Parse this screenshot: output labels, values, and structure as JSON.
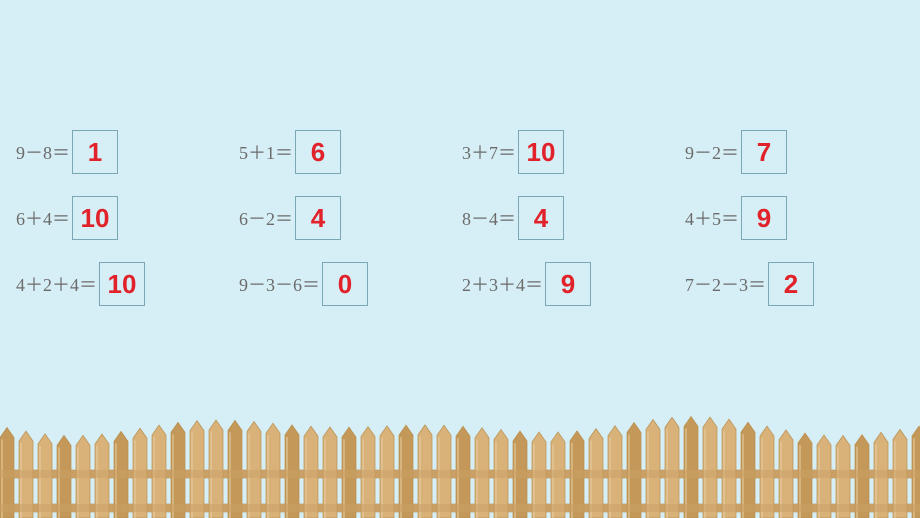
{
  "background_color": "#d6eef5",
  "answer_color": "#e1222a",
  "expr_color": "#6b6b6b",
  "box_border_color": "#7aa7b3",
  "expr_fontsize": 18,
  "answer_fontsize": 26,
  "fence": {
    "picket_color_light": "#d9b27a",
    "picket_color_dark": "#c39858",
    "picket_edge": "#b88e4e",
    "rail_color": "#caa066"
  },
  "columns": [
    [
      {
        "expr": "9－8＝",
        "ans": "1"
      },
      {
        "expr": "6＋4＝",
        "ans": "10"
      },
      {
        "expr": "4＋2＋4＝",
        "ans": "10"
      }
    ],
    [
      {
        "expr": "5＋1＝",
        "ans": "6"
      },
      {
        "expr": "6－2＝",
        "ans": "4"
      },
      {
        "expr": "9－3－6＝",
        "ans": "0"
      }
    ],
    [
      {
        "expr": "3＋7＝",
        "ans": "10"
      },
      {
        "expr": "8－4＝",
        "ans": "4"
      },
      {
        "expr": "2＋3＋4＝",
        "ans": "9"
      }
    ],
    [
      {
        "expr": "9－2＝",
        "ans": "7"
      },
      {
        "expr": "4＋5＝",
        "ans": "9"
      },
      {
        "expr": "7－2－3＝",
        "ans": "2"
      }
    ]
  ]
}
